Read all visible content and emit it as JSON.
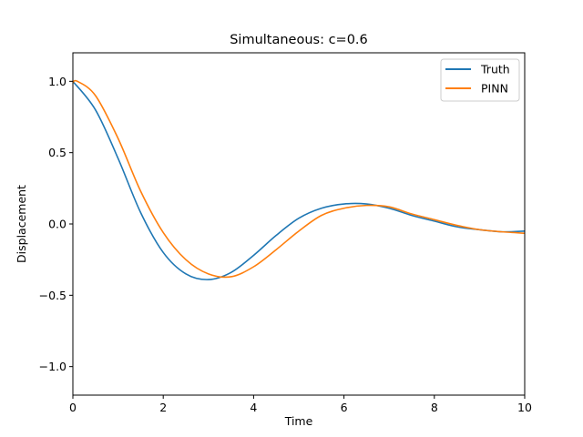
{
  "chart_data": {
    "type": "line",
    "title": "Simultaneous: c=0.6",
    "xlabel": "Time",
    "ylabel": "Displacement",
    "xlim": [
      0,
      10
    ],
    "ylim": [
      -1.2,
      1.2
    ],
    "xticks": [
      0,
      2,
      4,
      6,
      8,
      10
    ],
    "xtick_labels": [
      "0",
      "2",
      "4",
      "6",
      "8",
      "10"
    ],
    "yticks": [
      -1.0,
      -0.5,
      0.0,
      0.5,
      1.0
    ],
    "ytick_labels": [
      "−1.0",
      "−0.5",
      "0.0",
      "0.5",
      "1.0"
    ],
    "grid": false,
    "legend_position": "top-right",
    "series": [
      {
        "name": "Truth",
        "color": "#1f77b4",
        "x": [
          0,
          0.5,
          1.0,
          1.5,
          2.0,
          2.5,
          3.0,
          3.5,
          4.0,
          4.5,
          5.0,
          5.5,
          6.0,
          6.5,
          7.0,
          7.5,
          8.0,
          8.5,
          9.0,
          9.5,
          10.0
        ],
        "y": [
          1.0,
          0.8,
          0.46,
          0.08,
          -0.2,
          -0.35,
          -0.39,
          -0.34,
          -0.22,
          -0.08,
          0.04,
          0.11,
          0.14,
          0.14,
          0.11,
          0.06,
          0.02,
          -0.02,
          -0.04,
          -0.055,
          -0.05
        ]
      },
      {
        "name": "PINN",
        "color": "#ff7f0e",
        "x": [
          0,
          0.1,
          0.5,
          1.0,
          1.5,
          2.0,
          2.5,
          3.0,
          3.5,
          4.0,
          4.5,
          5.0,
          5.5,
          6.0,
          6.5,
          7.0,
          7.5,
          8.0,
          8.5,
          9.0,
          9.5,
          10.0
        ],
        "y": [
          0.99,
          1.0,
          0.9,
          0.6,
          0.23,
          -0.06,
          -0.25,
          -0.35,
          -0.37,
          -0.3,
          -0.18,
          -0.05,
          0.06,
          0.11,
          0.13,
          0.12,
          0.07,
          0.03,
          -0.01,
          -0.04,
          -0.055,
          -0.065
        ]
      }
    ]
  }
}
